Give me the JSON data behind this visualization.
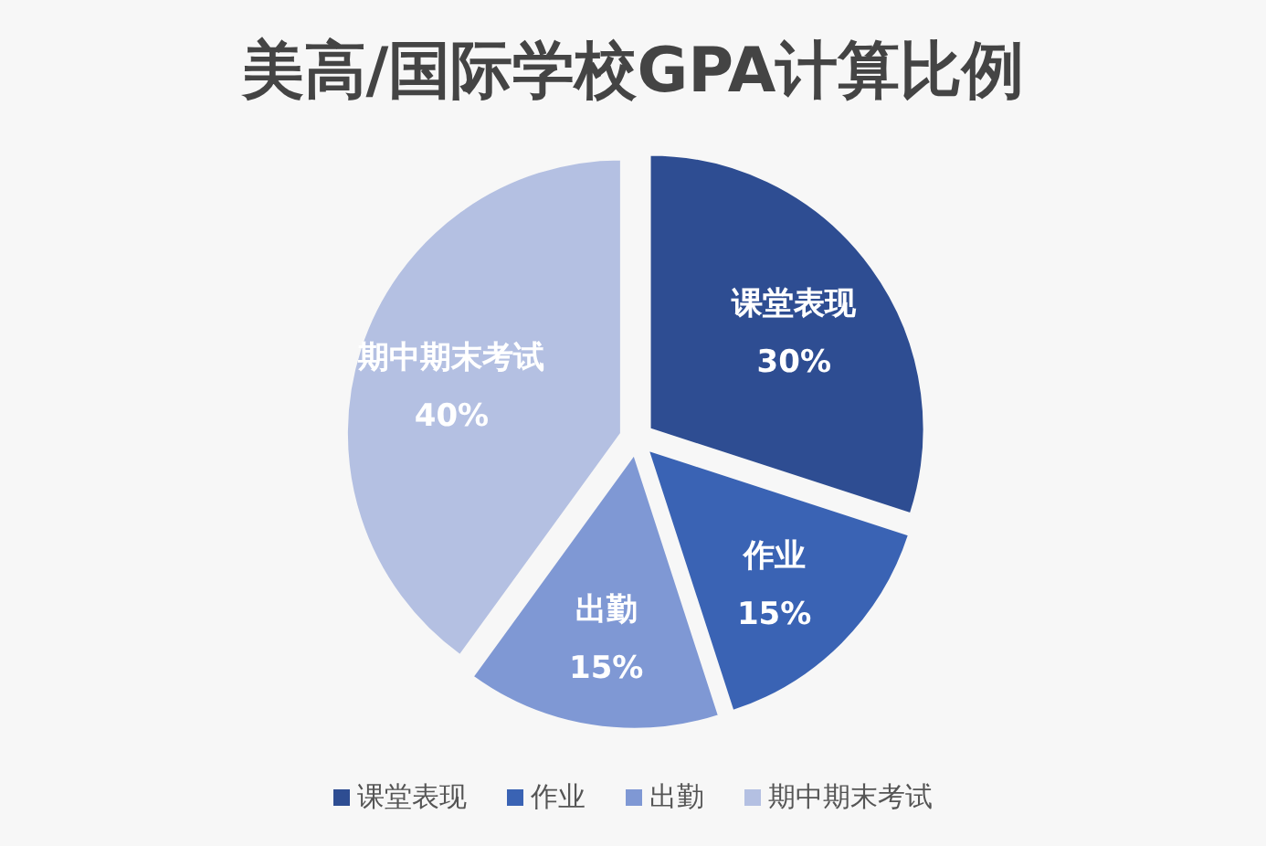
{
  "chart_data": {
    "type": "pie",
    "title": "美高/国际学校GPA计算比例",
    "categories": [
      "课堂表现",
      "作业",
      "出勤",
      "期中期末考试"
    ],
    "values": [
      30,
      15,
      15,
      40
    ],
    "colors": [
      "#2e4d92",
      "#3a63b4",
      "#7f98d4",
      "#b4c0e2"
    ],
    "value_labels": [
      "30%",
      "15%",
      "15%",
      "40%"
    ],
    "legend": "bottom"
  }
}
